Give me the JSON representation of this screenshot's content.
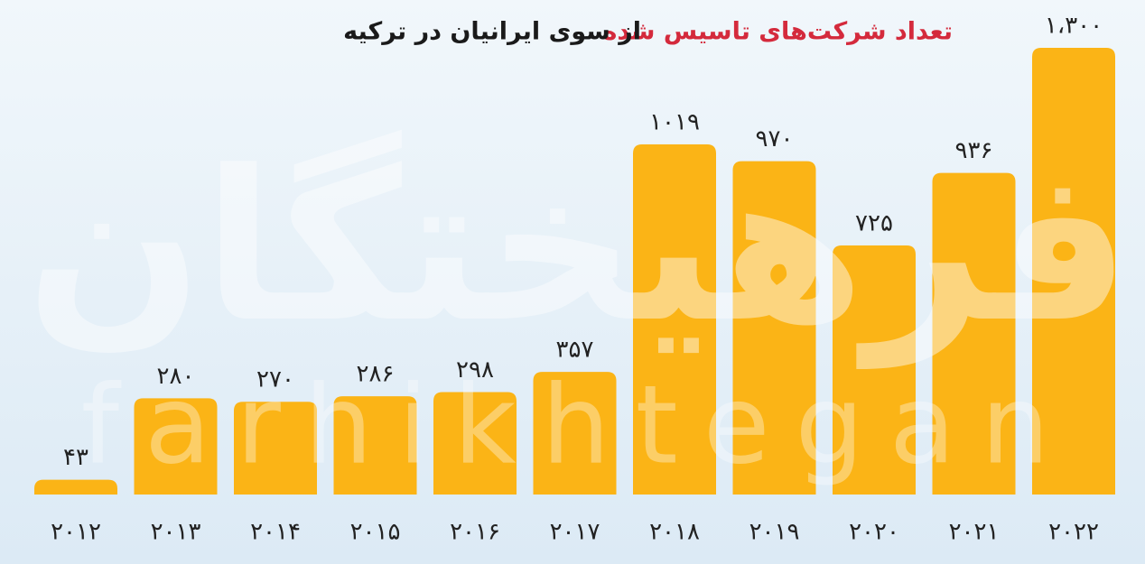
{
  "chart_data": {
    "type": "bar",
    "title_parts": [
      "تعداد شرکت‌های تاسیس شده",
      "از سوی ایرانیان در ترکیه"
    ],
    "title_colors": [
      "#d42a3c",
      "#1a1a1a"
    ],
    "watermark": [
      "فرهیختگان",
      "farhikhtegan"
    ],
    "categories": [
      "۲۰۱۲",
      "۲۰۱۳",
      "۲۰۱۴",
      "۲۰۱۵",
      "۲۰۱۶",
      "۲۰۱۷",
      "۲۰۱۸",
      "۲۰۱۹",
      "۲۰۲۰",
      "۲۰۲۱",
      "۲۰۲۲"
    ],
    "values": [
      43,
      280,
      270,
      286,
      298,
      357,
      1019,
      970,
      725,
      936,
      1300
    ],
    "value_labels": [
      "۴۳",
      "۲۸۰",
      "۲۷۰",
      "۲۸۶",
      "۲۹۸",
      "۳۵۷",
      "۱۰۱۹",
      "۹۷۰",
      "۷۲۵",
      "۹۳۶",
      "۱،۳۰۰"
    ],
    "color": "#fbb416"
  }
}
